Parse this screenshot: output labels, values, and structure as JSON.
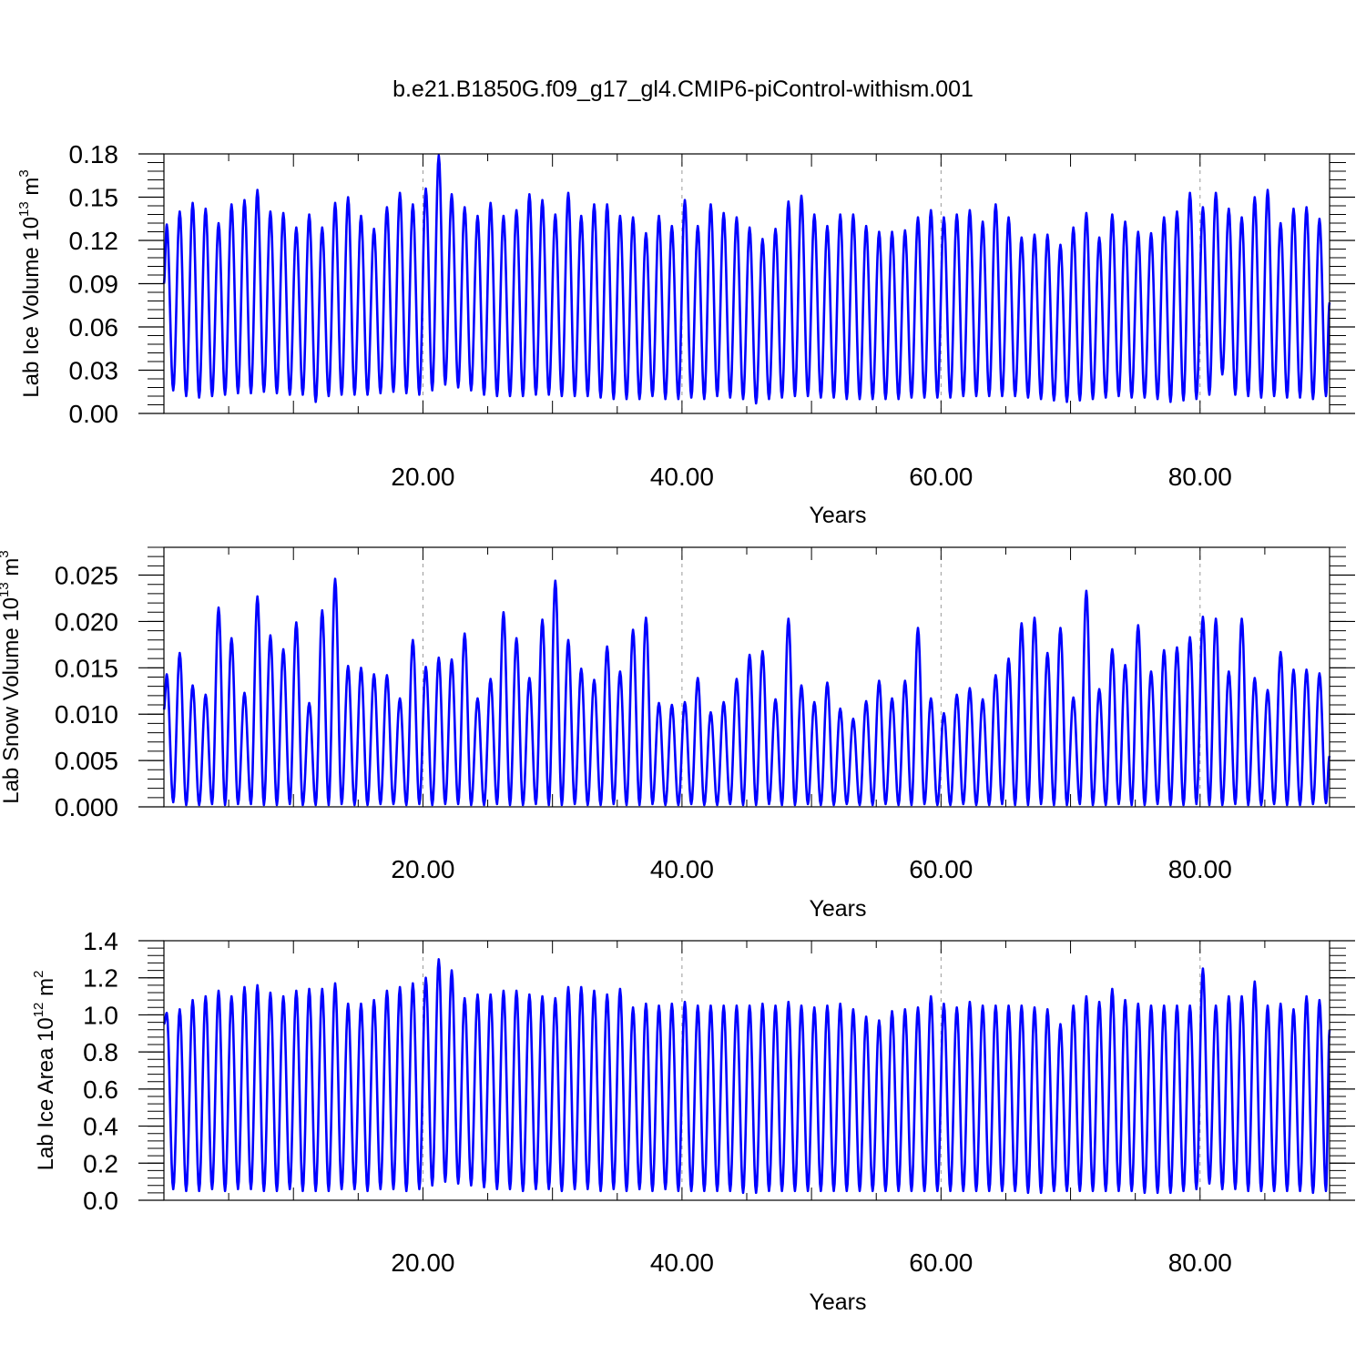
{
  "figure": {
    "title": "b.e21.B1850G.f09_g17_gl4.CMIP6-piControl-withism.001",
    "line_color": "#0000ff",
    "frame_color": "#000000",
    "grid_color": "#999999"
  },
  "chart_data": [
    {
      "type": "line",
      "ylabel": "Lab Ice Volume 10",
      "ylabel_exp": "13",
      "ylabel_unit": " m",
      "ylabel_unit_exp": "3",
      "xlabel": "Years",
      "xlim": [
        0,
        90
      ],
      "ylim": [
        0,
        0.18
      ],
      "yticks": [
        0,
        0.03,
        0.06,
        0.09,
        0.12,
        0.15,
        0.18
      ],
      "ytick_labels": [
        "0.00",
        "0.03",
        "0.06",
        "0.09",
        "0.12",
        "0.15",
        "0.18"
      ],
      "xticks": [
        20,
        40,
        60,
        80
      ],
      "xtick_labels": [
        "20.00",
        "40.00",
        "60.00",
        "80.00"
      ],
      "grid": "vertical dashed at major x ticks",
      "series": [
        {
          "color": "#0000ff",
          "start_value": 0.09,
          "end_value": 0.077,
          "minima": [
            0.016,
            0.012,
            0.011,
            0.012,
            0.013,
            0.014,
            0.014,
            0.015,
            0.014,
            0.013,
            0.013,
            0.008,
            0.012,
            0.013,
            0.013,
            0.013,
            0.014,
            0.015,
            0.014,
            0.013,
            0.016,
            0.02,
            0.018,
            0.016,
            0.013,
            0.012,
            0.012,
            0.012,
            0.013,
            0.013,
            0.012,
            0.012,
            0.012,
            0.011,
            0.01,
            0.01,
            0.01,
            0.012,
            0.01,
            0.01,
            0.011,
            0.01,
            0.012,
            0.011,
            0.01,
            0.007,
            0.01,
            0.011,
            0.012,
            0.012,
            0.011,
            0.011,
            0.01,
            0.01,
            0.01,
            0.01,
            0.01,
            0.011,
            0.011,
            0.011,
            0.011,
            0.012,
            0.012,
            0.012,
            0.012,
            0.012,
            0.011,
            0.01,
            0.009,
            0.008,
            0.009,
            0.01,
            0.011,
            0.012,
            0.011,
            0.011,
            0.01,
            0.008,
            0.009,
            0.01,
            0.013,
            0.027,
            0.013,
            0.012,
            0.011,
            0.012,
            0.011,
            0.011,
            0.01,
            0.012
          ],
          "peaks": [
            0.131,
            0.14,
            0.146,
            0.142,
            0.132,
            0.145,
            0.148,
            0.155,
            0.14,
            0.139,
            0.129,
            0.138,
            0.129,
            0.146,
            0.15,
            0.137,
            0.128,
            0.143,
            0.153,
            0.145,
            0.156,
            0.179,
            0.152,
            0.143,
            0.137,
            0.146,
            0.137,
            0.141,
            0.152,
            0.148,
            0.138,
            0.153,
            0.137,
            0.145,
            0.145,
            0.137,
            0.136,
            0.125,
            0.137,
            0.13,
            0.148,
            0.13,
            0.145,
            0.139,
            0.136,
            0.129,
            0.121,
            0.128,
            0.147,
            0.151,
            0.138,
            0.13,
            0.138,
            0.138,
            0.13,
            0.126,
            0.126,
            0.127,
            0.136,
            0.141,
            0.136,
            0.138,
            0.141,
            0.133,
            0.145,
            0.136,
            0.122,
            0.124,
            0.124,
            0.117,
            0.129,
            0.139,
            0.122,
            0.138,
            0.133,
            0.126,
            0.125,
            0.136,
            0.14,
            0.153,
            0.143,
            0.153,
            0.142,
            0.136,
            0.15,
            0.155,
            0.132,
            0.142,
            0.143,
            0.135
          ]
        }
      ]
    },
    {
      "type": "line",
      "ylabel": "Lab Snow Volume 10",
      "ylabel_exp": "13",
      "ylabel_unit": " m",
      "ylabel_unit_exp": "3",
      "xlabel": "Years",
      "xlim": [
        0,
        90
      ],
      "ylim": [
        0,
        0.028
      ],
      "yticks": [
        0,
        0.005,
        0.01,
        0.015,
        0.02,
        0.025
      ],
      "ytick_labels": [
        "0.000",
        "0.005",
        "0.010",
        "0.015",
        "0.020",
        "0.025"
      ],
      "xticks": [
        20,
        40,
        60,
        80
      ],
      "xtick_labels": [
        "20.00",
        "40.00",
        "60.00",
        "80.00"
      ],
      "grid": "vertical dashed at major x ticks",
      "series": [
        {
          "color": "#0000ff",
          "start_value": 0.0105,
          "end_value": 0.0055,
          "minima": [
            0.0005,
            0.0002,
            0.0002,
            0.0003,
            0.0002,
            0.0003,
            0.0003,
            0.0002,
            0.0002,
            0.0003,
            0.0002,
            0.0002,
            0.0002,
            0.0003,
            0.0002,
            0.0002,
            0.0003,
            0.0003,
            0.0002,
            0.0003,
            0.0002,
            0.0003,
            0.0003,
            0.0002,
            0.0002,
            0.0003,
            0.0002,
            0.0002,
            0.0003,
            0.0002,
            0.0002,
            0.0003,
            0.0002,
            0.0002,
            0.0003,
            0.0002,
            0.0002,
            0.0003,
            0.0002,
            0.0002,
            0.0003,
            0.0002,
            0.0002,
            0.0003,
            0.0002,
            0.0002,
            0.0003,
            0.0002,
            0.0002,
            0.0003,
            0.0002,
            0.0002,
            0.0003,
            0.0002,
            0.0002,
            0.0003,
            0.0002,
            0.0002,
            0.0003,
            0.0002,
            0.0002,
            0.0003,
            0.0002,
            0.0002,
            0.0003,
            0.0002,
            0.0002,
            0.0003,
            0.0002,
            0.0002,
            0.0003,
            0.0002,
            0.0002,
            0.0003,
            0.0002,
            0.0002,
            0.0003,
            0.0002,
            0.0002,
            0.0003,
            0.0002,
            0.0002,
            0.0003,
            0.0002,
            0.0002,
            0.0003,
            0.0002,
            0.0002,
            0.0003,
            0.0004
          ],
          "peaks": [
            0.0143,
            0.0166,
            0.0131,
            0.0121,
            0.0215,
            0.0182,
            0.0123,
            0.0227,
            0.0185,
            0.017,
            0.0199,
            0.0112,
            0.0212,
            0.0246,
            0.0152,
            0.015,
            0.0143,
            0.0142,
            0.0117,
            0.018,
            0.0151,
            0.0161,
            0.0159,
            0.0187,
            0.0117,
            0.0138,
            0.021,
            0.0182,
            0.0139,
            0.0202,
            0.0244,
            0.018,
            0.0149,
            0.0137,
            0.0173,
            0.0146,
            0.0191,
            0.0204,
            0.0112,
            0.011,
            0.0113,
            0.0139,
            0.0102,
            0.0113,
            0.0138,
            0.0164,
            0.0168,
            0.0116,
            0.0203,
            0.0131,
            0.0113,
            0.0134,
            0.0106,
            0.0095,
            0.0114,
            0.0136,
            0.0117,
            0.0136,
            0.0193,
            0.0117,
            0.0101,
            0.0121,
            0.0128,
            0.0116,
            0.0142,
            0.016,
            0.0198,
            0.0204,
            0.0166,
            0.0193,
            0.0118,
            0.0233,
            0.0127,
            0.017,
            0.0153,
            0.0196,
            0.0146,
            0.0169,
            0.0172,
            0.0183,
            0.0205,
            0.0203,
            0.0146,
            0.0203,
            0.0139,
            0.0126,
            0.0167,
            0.0148,
            0.0148,
            0.0144
          ]
        }
      ]
    },
    {
      "type": "line",
      "ylabel": "Lab Ice Area 10",
      "ylabel_exp": "12",
      "ylabel_unit": " m",
      "ylabel_unit_exp": "2",
      "xlabel": "Years",
      "xlim": [
        0,
        90
      ],
      "ylim": [
        0,
        1.4
      ],
      "yticks": [
        0,
        0.2,
        0.4,
        0.6,
        0.8,
        1.0,
        1.2,
        1.4
      ],
      "ytick_labels": [
        "0.0",
        "0.2",
        "0.4",
        "0.6",
        "0.8",
        "1.0",
        "1.2",
        "1.4"
      ],
      "xticks": [
        20,
        40,
        60,
        80
      ],
      "xtick_labels": [
        "20.00",
        "40.00",
        "60.00",
        "80.00"
      ],
      "grid": "vertical dashed at major x ticks",
      "series": [
        {
          "color": "#0000ff",
          "start_value": 0.95,
          "end_value": 0.92,
          "minima": [
            0.06,
            0.05,
            0.05,
            0.06,
            0.05,
            0.06,
            0.06,
            0.05,
            0.05,
            0.06,
            0.05,
            0.05,
            0.05,
            0.06,
            0.06,
            0.05,
            0.06,
            0.06,
            0.05,
            0.06,
            0.08,
            0.1,
            0.09,
            0.08,
            0.07,
            0.06,
            0.06,
            0.05,
            0.06,
            0.06,
            0.05,
            0.06,
            0.06,
            0.05,
            0.06,
            0.05,
            0.06,
            0.05,
            0.06,
            0.05,
            0.05,
            0.05,
            0.05,
            0.05,
            0.04,
            0.04,
            0.05,
            0.05,
            0.05,
            0.05,
            0.05,
            0.05,
            0.05,
            0.05,
            0.05,
            0.05,
            0.05,
            0.05,
            0.05,
            0.05,
            0.05,
            0.05,
            0.05,
            0.05,
            0.05,
            0.05,
            0.04,
            0.04,
            0.05,
            0.05,
            0.05,
            0.05,
            0.05,
            0.05,
            0.05,
            0.04,
            0.04,
            0.04,
            0.05,
            0.06,
            0.09,
            0.06,
            0.06,
            0.05,
            0.05,
            0.05,
            0.05,
            0.05,
            0.04,
            0.05
          ],
          "peaks": [
            1.01,
            1.03,
            1.08,
            1.1,
            1.13,
            1.1,
            1.15,
            1.16,
            1.12,
            1.1,
            1.13,
            1.14,
            1.14,
            1.17,
            1.06,
            1.06,
            1.08,
            1.13,
            1.15,
            1.17,
            1.2,
            1.3,
            1.24,
            1.09,
            1.11,
            1.11,
            1.13,
            1.13,
            1.11,
            1.1,
            1.09,
            1.15,
            1.15,
            1.13,
            1.11,
            1.14,
            1.04,
            1.06,
            1.05,
            1.06,
            1.07,
            1.05,
            1.05,
            1.05,
            1.05,
            1.05,
            1.06,
            1.05,
            1.07,
            1.05,
            1.04,
            1.05,
            1.06,
            1.03,
            0.99,
            0.97,
            1.02,
            1.03,
            1.04,
            1.1,
            1.06,
            1.04,
            1.07,
            1.05,
            1.05,
            1.05,
            1.05,
            1.04,
            1.03,
            0.95,
            1.05,
            1.1,
            1.07,
            1.14,
            1.08,
            1.06,
            1.05,
            1.05,
            1.05,
            1.05,
            1.25,
            1.05,
            1.1,
            1.1,
            1.18,
            1.05,
            1.06,
            1.03,
            1.1,
            1.08
          ]
        }
      ]
    }
  ]
}
